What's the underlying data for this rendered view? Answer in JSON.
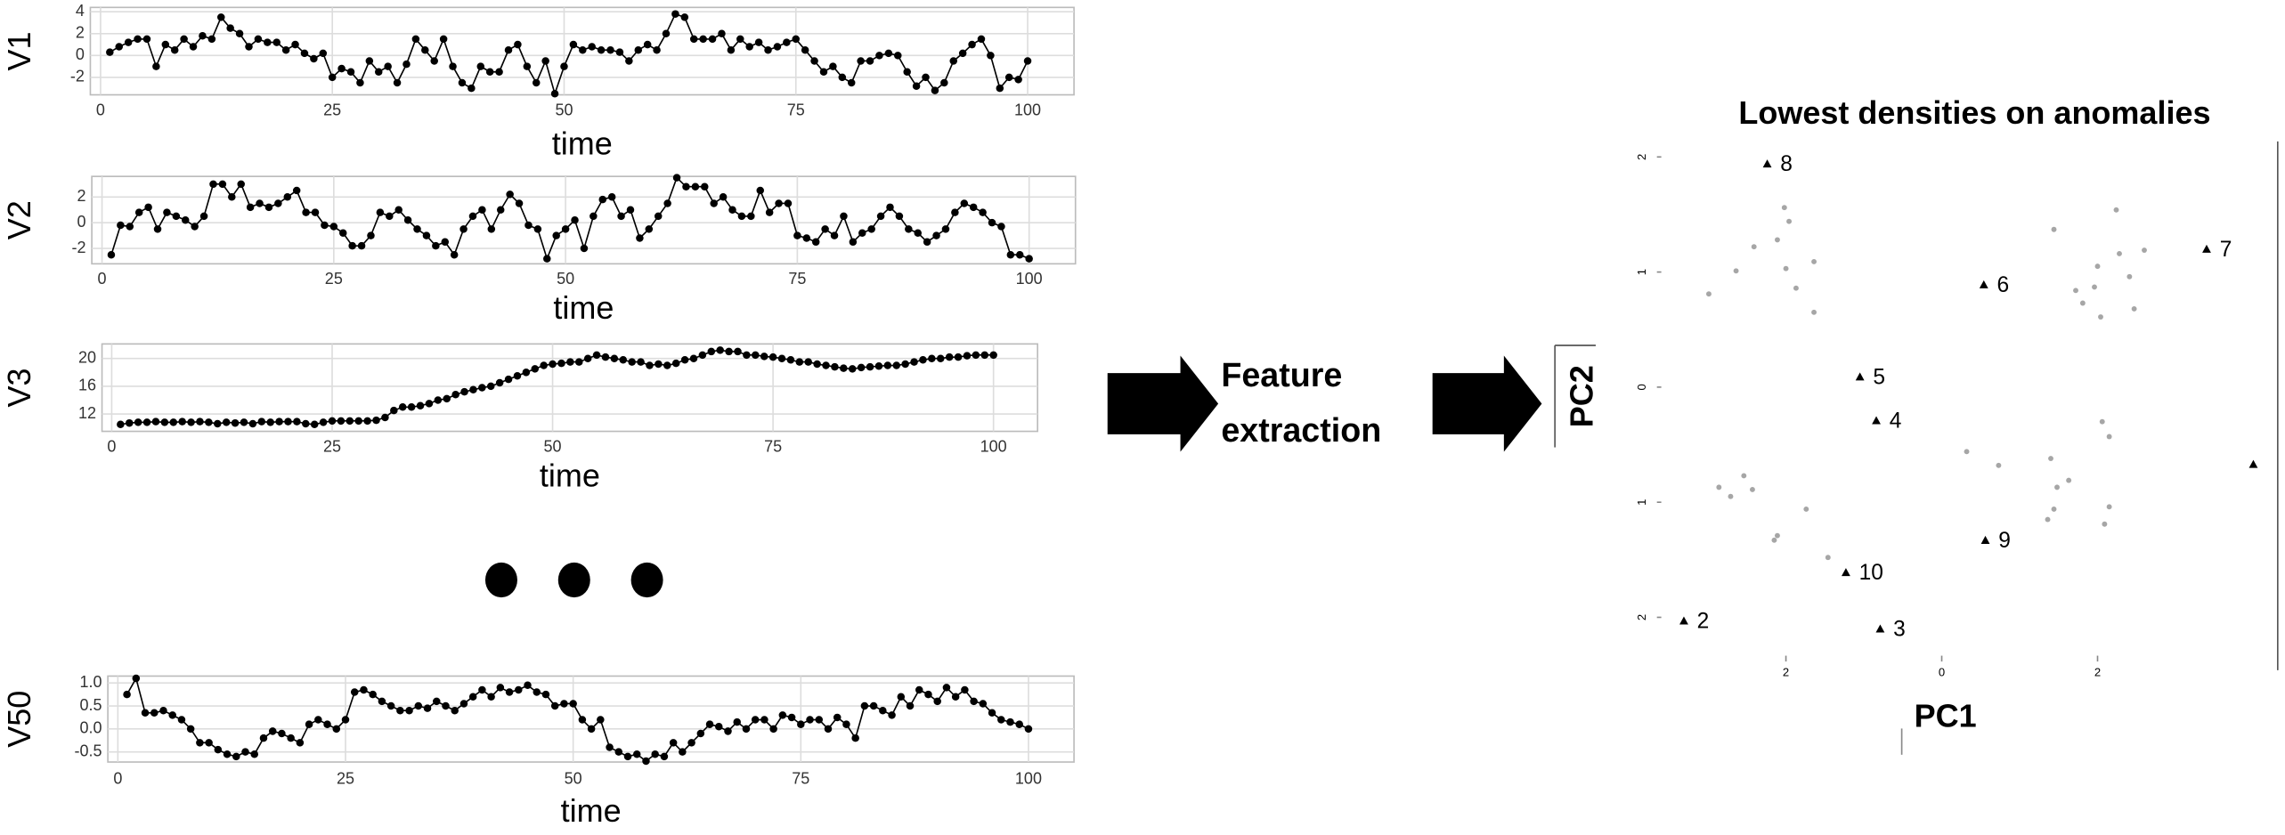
{
  "chart_data": [
    {
      "type": "line",
      "ylabel": "V1",
      "xlabel": "time",
      "color": "#000000",
      "grid": true,
      "x": [
        1,
        2,
        3,
        4,
        5,
        6,
        7,
        8,
        9,
        10,
        11,
        12,
        13,
        14,
        15,
        16,
        17,
        18,
        19,
        20,
        21,
        22,
        23,
        24,
        25,
        26,
        27,
        28,
        29,
        30,
        31,
        32,
        33,
        34,
        35,
        36,
        37,
        38,
        39,
        40,
        41,
        42,
        43,
        44,
        45,
        46,
        47,
        48,
        49,
        50,
        51,
        52,
        53,
        54,
        55,
        56,
        57,
        58,
        59,
        60,
        61,
        62,
        63,
        64,
        65,
        66,
        67,
        68,
        69,
        70,
        71,
        72,
        73,
        74,
        75,
        76,
        77,
        78,
        79,
        80,
        81,
        82,
        83,
        84,
        85,
        86,
        87,
        88,
        89,
        90,
        91,
        92,
        93,
        94,
        95,
        96,
        97,
        98,
        99,
        100
      ],
      "values": [
        0.3,
        0.8,
        1.2,
        1.5,
        1.5,
        -1.0,
        1.0,
        0.5,
        1.5,
        0.8,
        1.8,
        1.5,
        3.5,
        2.5,
        2.0,
        0.8,
        1.5,
        1.2,
        1.2,
        0.5,
        1.0,
        0.2,
        -0.3,
        0.2,
        -2.0,
        -1.2,
        -1.5,
        -2.5,
        -0.5,
        -1.5,
        -1.0,
        -2.5,
        -0.8,
        1.5,
        0.5,
        -0.5,
        1.5,
        -1.0,
        -2.5,
        -3.0,
        -1.0,
        -1.5,
        -1.5,
        0.5,
        1.0,
        -1.0,
        -2.5,
        -0.5,
        -3.5,
        -1.0,
        1.0,
        0.5,
        0.8,
        0.5,
        0.5,
        0.3,
        -0.5,
        0.5,
        1.0,
        0.5,
        2.0,
        3.8,
        3.5,
        1.5,
        1.5,
        1.5,
        2.0,
        0.5,
        1.5,
        0.8,
        1.2,
        0.5,
        0.8,
        1.2,
        1.5,
        0.5,
        -0.5,
        -1.5,
        -1.0,
        -2.0,
        -2.5,
        -0.5,
        -0.5,
        0,
        0.2,
        0,
        -1.5,
        -2.8,
        -2.0,
        -3.2,
        -2.5,
        -0.5,
        0.2,
        1.0,
        1.5,
        0,
        -3.0,
        -2.0,
        -2.2,
        -0.5
      ],
      "xlim": [
        -1.1,
        105
      ],
      "xticks": [
        0,
        25,
        50,
        75,
        100
      ],
      "ylim": [
        -3.6,
        4.4
      ],
      "yticks": [
        -2,
        0,
        2,
        4
      ]
    },
    {
      "type": "line",
      "ylabel": "V2",
      "xlabel": "time",
      "color": "#000000",
      "grid": true,
      "x": [
        1,
        2,
        3,
        4,
        5,
        6,
        7,
        8,
        9,
        10,
        11,
        12,
        13,
        14,
        15,
        16,
        17,
        18,
        19,
        20,
        21,
        22,
        23,
        24,
        25,
        26,
        27,
        28,
        29,
        30,
        31,
        32,
        33,
        34,
        35,
        36,
        37,
        38,
        39,
        40,
        41,
        42,
        43,
        44,
        45,
        46,
        47,
        48,
        49,
        50,
        51,
        52,
        53,
        54,
        55,
        56,
        57,
        58,
        59,
        60,
        61,
        62,
        63,
        64,
        65,
        66,
        67,
        68,
        69,
        70,
        71,
        72,
        73,
        74,
        75,
        76,
        77,
        78,
        79,
        80,
        81,
        82,
        83,
        84,
        85,
        86,
        87,
        88,
        89,
        90,
        91,
        92,
        93,
        94,
        95,
        96,
        97,
        98,
        99,
        100
      ],
      "values": [
        -2.5,
        -0.2,
        -0.3,
        0.8,
        1.2,
        -0.5,
        0.8,
        0.5,
        0.2,
        -0.3,
        0.5,
        3.0,
        3.0,
        2.0,
        3.0,
        1.2,
        1.5,
        1.2,
        1.5,
        2.0,
        2.5,
        0.8,
        0.8,
        -0.2,
        -0.3,
        -0.8,
        -1.8,
        -1.8,
        -1.0,
        0.8,
        0.5,
        1.0,
        0.2,
        -0.5,
        -1.0,
        -1.8,
        -1.5,
        -2.5,
        -0.5,
        0.5,
        1.0,
        -0.5,
        1.0,
        2.2,
        1.5,
        -0.2,
        -0.5,
        -2.8,
        -1.0,
        -0.5,
        0.2,
        -2.0,
        0.5,
        1.8,
        2.0,
        0.5,
        1.0,
        -1.2,
        -0.5,
        0.5,
        1.5,
        3.5,
        2.8,
        2.8,
        2.8,
        1.5,
        2.0,
        1.0,
        0.5,
        0.5,
        2.5,
        0.8,
        1.5,
        1.5,
        -1.0,
        -1.2,
        -1.5,
        -0.5,
        -1.0,
        0.5,
        -1.5,
        -0.8,
        -0.5,
        0.5,
        1.2,
        0.5,
        -0.5,
        -0.8,
        -1.5,
        -1.0,
        -0.5,
        0.8,
        1.5,
        1.2,
        0.8,
        0,
        -0.3,
        -2.5,
        -2.5,
        -2.8
      ],
      "xlim": [
        -1.1,
        105
      ],
      "xticks": [
        0,
        25,
        50,
        75,
        100
      ],
      "ylim": [
        -3.2,
        3.6
      ],
      "yticks": [
        -2,
        0,
        2
      ]
    },
    {
      "type": "line",
      "ylabel": "V3",
      "xlabel": "time",
      "color": "#000000",
      "grid": true,
      "x": [
        1,
        2,
        3,
        4,
        5,
        6,
        7,
        8,
        9,
        10,
        11,
        12,
        13,
        14,
        15,
        16,
        17,
        18,
        19,
        20,
        21,
        22,
        23,
        24,
        25,
        26,
        27,
        28,
        29,
        30,
        31,
        32,
        33,
        34,
        35,
        36,
        37,
        38,
        39,
        40,
        41,
        42,
        43,
        44,
        45,
        46,
        47,
        48,
        49,
        50,
        51,
        52,
        53,
        54,
        55,
        56,
        57,
        58,
        59,
        60,
        61,
        62,
        63,
        64,
        65,
        66,
        67,
        68,
        69,
        70,
        71,
        72,
        73,
        74,
        75,
        76,
        77,
        78,
        79,
        80,
        81,
        82,
        83,
        84,
        85,
        86,
        87,
        88,
        89,
        90,
        91,
        92,
        93,
        94,
        95,
        96,
        97,
        98,
        99,
        100
      ],
      "values": [
        10.5,
        10.7,
        10.8,
        10.8,
        10.9,
        10.8,
        10.8,
        10.9,
        10.8,
        10.9,
        10.8,
        10.6,
        10.8,
        10.7,
        10.8,
        10.6,
        10.9,
        10.8,
        10.9,
        10.9,
        10.9,
        10.6,
        10.5,
        10.8,
        11.0,
        11.0,
        11.0,
        11.0,
        11.0,
        11.1,
        11.5,
        12.5,
        13.0,
        13.0,
        13.2,
        13.5,
        14.0,
        14.2,
        14.8,
        15.2,
        15.5,
        15.8,
        16.0,
        16.5,
        17.0,
        17.5,
        18.0,
        18.5,
        19.0,
        19.2,
        19.3,
        19.5,
        19.5,
        20.0,
        20.5,
        20.2,
        20.0,
        19.8,
        19.5,
        19.5,
        19.0,
        19.2,
        19.0,
        19.3,
        19.8,
        20.0,
        20.5,
        21.0,
        21.2,
        21.0,
        21.0,
        20.5,
        20.5,
        20.3,
        20.2,
        20.0,
        19.8,
        19.5,
        19.5,
        19.2,
        19.0,
        18.8,
        18.6,
        18.5,
        18.7,
        18.8,
        18.9,
        19.0,
        19.0,
        19.2,
        19.5,
        19.8,
        20.0,
        20.0,
        20.2,
        20.2,
        20.4,
        20.5,
        20.5,
        20.5
      ],
      "xlim": [
        -1.1,
        105
      ],
      "xticks": [
        0,
        25,
        50,
        75,
        100
      ],
      "ylim": [
        9.5,
        22.1
      ],
      "yticks": [
        12,
        16,
        20
      ]
    },
    {
      "type": "line",
      "ylabel": "V50",
      "xlabel": "time",
      "color": "#000000",
      "grid": true,
      "x": [
        1,
        2,
        3,
        4,
        5,
        6,
        7,
        8,
        9,
        10,
        11,
        12,
        13,
        14,
        15,
        16,
        17,
        18,
        19,
        20,
        21,
        22,
        23,
        24,
        25,
        26,
        27,
        28,
        29,
        30,
        31,
        32,
        33,
        34,
        35,
        36,
        37,
        38,
        39,
        40,
        41,
        42,
        43,
        44,
        45,
        46,
        47,
        48,
        49,
        50,
        51,
        52,
        53,
        54,
        55,
        56,
        57,
        58,
        59,
        60,
        61,
        62,
        63,
        64,
        65,
        66,
        67,
        68,
        69,
        70,
        71,
        72,
        73,
        74,
        75,
        76,
        77,
        78,
        79,
        80,
        81,
        82,
        83,
        84,
        85,
        86,
        87,
        88,
        89,
        90,
        91,
        92,
        93,
        94,
        95,
        96,
        97,
        98,
        99,
        100
      ],
      "values": [
        0.75,
        1.1,
        0.35,
        0.35,
        0.4,
        0.3,
        0.2,
        0.0,
        -0.3,
        -0.3,
        -0.45,
        -0.55,
        -0.6,
        -0.5,
        -0.55,
        -0.2,
        -0.05,
        -0.1,
        -0.2,
        -0.3,
        0.1,
        0.2,
        0.1,
        0.0,
        0.2,
        0.8,
        0.85,
        0.75,
        0.6,
        0.5,
        0.4,
        0.4,
        0.5,
        0.45,
        0.6,
        0.5,
        0.4,
        0.55,
        0.7,
        0.85,
        0.7,
        0.9,
        0.8,
        0.85,
        0.95,
        0.8,
        0.75,
        0.5,
        0.55,
        0.55,
        0.2,
        0.0,
        0.2,
        -0.4,
        -0.5,
        -0.6,
        -0.55,
        -0.7,
        -0.55,
        -0.6,
        -0.3,
        -0.5,
        -0.3,
        -0.1,
        0.1,
        0.05,
        -0.05,
        0.15,
        0.0,
        0.2,
        0.2,
        0.0,
        0.3,
        0.25,
        0.1,
        0.2,
        0.2,
        0.0,
        0.25,
        0.1,
        -0.2,
        0.5,
        0.5,
        0.4,
        0.3,
        0.7,
        0.5,
        0.85,
        0.75,
        0.6,
        0.9,
        0.7,
        0.85,
        0.6,
        0.55,
        0.35,
        0.2,
        0.15,
        0.1,
        0.0
      ],
      "xlim": [
        -1.1,
        105
      ],
      "xticks": [
        0,
        25,
        50,
        75,
        100
      ],
      "ylim": [
        -0.72,
        1.15
      ],
      "yticks": [
        -0.5,
        {
          "value": 0,
          "label": "0.0"
        },
        0.5,
        {
          "value": 1,
          "label": "1.0"
        }
      ]
    },
    {
      "type": "scatter",
      "title": "Lowest densities on anomalies",
      "xlabel": "PC1",
      "ylabel": "PC2",
      "xlim": [
        -3.6,
        4.35
      ],
      "ylim": [
        -2.27,
        2.16
      ],
      "xticks": [
        {
          "value": -2,
          "label": "2"
        },
        0,
        2
      ],
      "yticks": [
        2,
        1,
        0,
        {
          "value": -1,
          "label": "1"
        },
        {
          "value": -2,
          "label": "2"
        }
      ],
      "series": [
        {
          "color": "#a6a6a6",
          "marker": "circle",
          "x": [
            -2.99,
            -2.64,
            -2.41,
            -2.11,
            -2.02,
            -1.96,
            -2.0,
            -1.87,
            -1.64,
            -1.64,
            1.44,
            1.72,
            1.81,
            1.96,
            2.0,
            2.04,
            2.28,
            2.41,
            2.47,
            2.6,
            2.24,
            -2.86,
            -2.71,
            -2.54,
            -2.43,
            -1.74,
            -2.11,
            -2.15,
            -1.46,
            0.32,
            0.73,
            1.4,
            1.48,
            1.44,
            1.36,
            1.63,
            2.06,
            2.15,
            2.09,
            2.15
          ],
          "values": [
            0.81,
            1.01,
            1.22,
            1.28,
            1.56,
            1.44,
            1.03,
            0.86,
            1.09,
            0.65,
            1.37,
            0.84,
            0.73,
            0.87,
            1.05,
            0.61,
            1.16,
            0.96,
            0.68,
            1.19,
            1.54,
            -0.87,
            -0.95,
            -0.77,
            -0.89,
            -1.06,
            -1.29,
            -1.33,
            -1.48,
            -0.56,
            -0.68,
            -0.62,
            -0.87,
            -1.06,
            -1.15,
            -0.81,
            -0.3,
            -0.43,
            -1.19,
            -1.04
          ]
        },
        {
          "color": "#000000",
          "marker": "triangle",
          "x": [
            -2.24,
            0.54,
            3.4,
            -1.05,
            -0.84,
            0.56,
            -1.23,
            -3.31,
            -0.79,
            4.0
          ],
          "values": [
            1.94,
            0.89,
            1.2,
            0.09,
            -0.29,
            -1.33,
            -1.61,
            -2.03,
            -2.1,
            -0.67
          ],
          "labels": [
            "8",
            "6",
            "7",
            "5",
            "4",
            "9",
            "10",
            "2",
            "3",
            null
          ]
        }
      ]
    }
  ],
  "flow_label": [
    "Feature",
    "extraction"
  ]
}
